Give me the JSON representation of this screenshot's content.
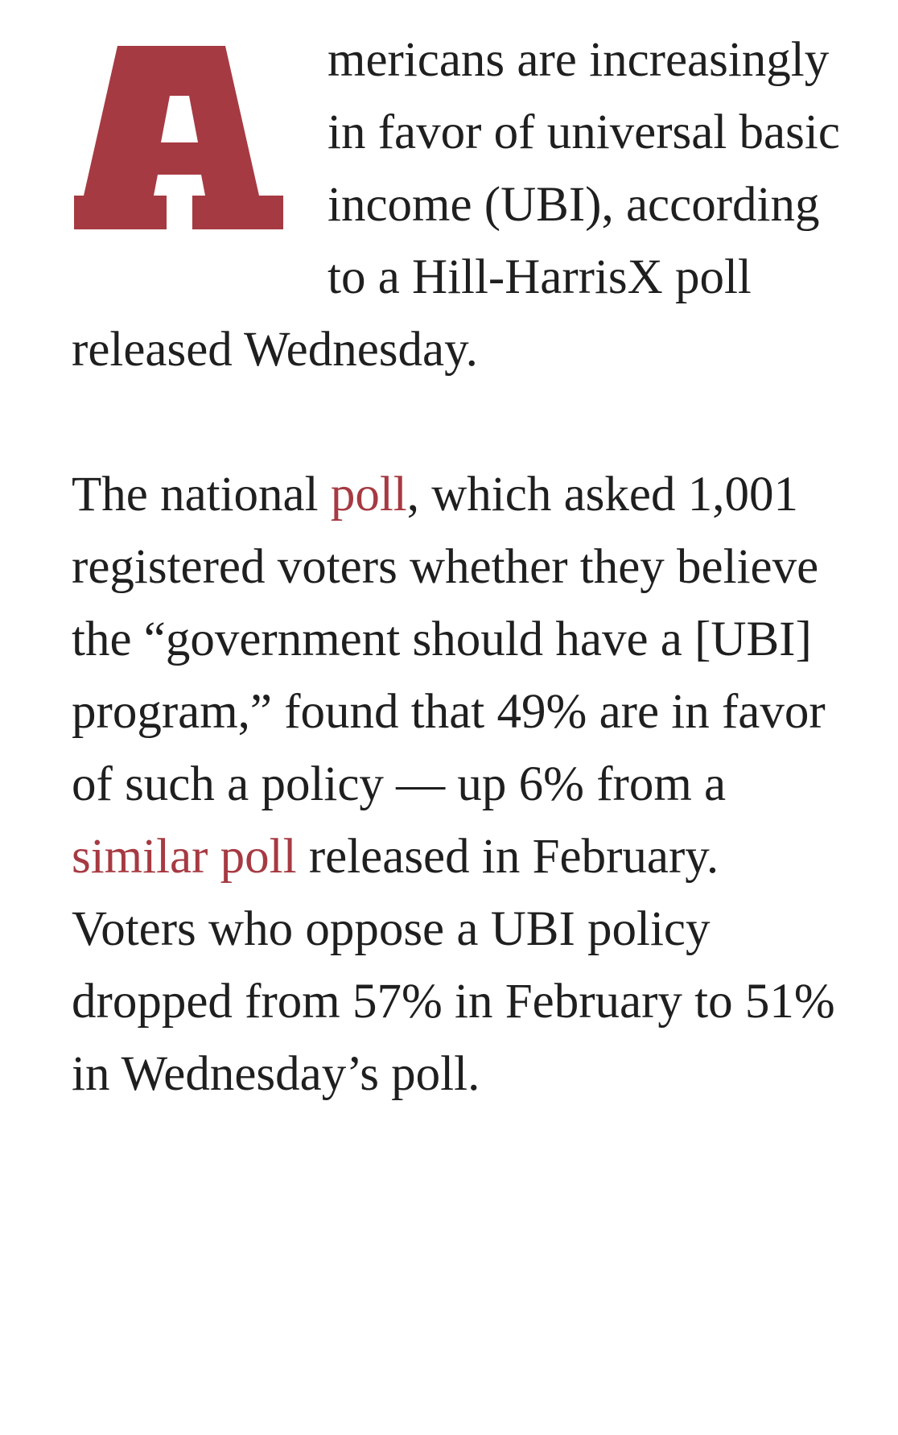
{
  "article": {
    "paragraph_1": {
      "drop_cap": "A",
      "text": "mericans are increasingly in favor of universal basic income (UBI), according to a Hill-HarrisX poll released Wednesday."
    },
    "paragraph_2": {
      "before_link_1": "The national ",
      "link_1": "poll",
      "between_links": ", which asked 1,001 registered voters whether they believe the “government should have a [UBI] program,” found that 49% are in favor of such a policy — up 6% from a ",
      "link_2": "similar poll",
      "after_link_2": " released in February. Voters who oppose a UBI policy dropped from 57% in February to 51% in Wednesday’s poll."
    }
  },
  "colors": {
    "accent": "#a63a42",
    "text": "#1f1f1f",
    "background": "#ffffff"
  }
}
